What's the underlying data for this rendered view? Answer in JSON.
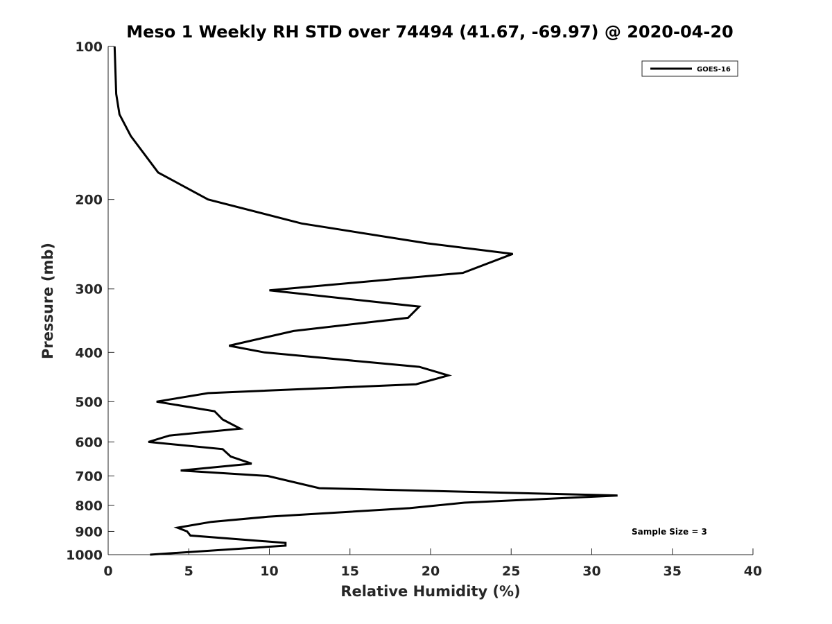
{
  "chart_data": {
    "type": "line",
    "title": "Meso 1 Weekly RH STD over 74494 (41.67, -69.97) @ 2020-04-20",
    "xlabel": "Relative Humidity (%)",
    "ylabel": "Pressure (mb)",
    "xlim": [
      0,
      40
    ],
    "ylim": [
      100,
      1000
    ],
    "yscale": "log",
    "y_reversed": true,
    "grid": false,
    "x_ticks": [
      0,
      5,
      10,
      15,
      20,
      25,
      30,
      35,
      40
    ],
    "x_tick_labels": [
      "0",
      "5",
      "10",
      "15",
      "20",
      "25",
      "30",
      "35",
      "40"
    ],
    "y_ticks": [
      100,
      200,
      300,
      400,
      500,
      600,
      700,
      800,
      900,
      1000
    ],
    "y_tick_labels": [
      "100",
      "200",
      "300",
      "400",
      "500",
      "600",
      "700",
      "800",
      "900",
      "1000"
    ],
    "legend": {
      "entries": [
        "GOES-16"
      ],
      "placement": "top-right"
    },
    "annotation": "Sample Size = 3",
    "series": [
      {
        "name": "GOES-16",
        "color": "#000000",
        "x": [
          0.4,
          0.5,
          0.7,
          1.4,
          3.1,
          6.2,
          12.0,
          19.8,
          25.1,
          22.0,
          10.0,
          19.3,
          18.6,
          11.5,
          7.5,
          9.7,
          19.3,
          21.1,
          19.1,
          6.2,
          3.0,
          6.6,
          7.1,
          8.2,
          3.8,
          2.5,
          7.1,
          7.6,
          8.9,
          4.5,
          9.9,
          13.1,
          31.6,
          22.1,
          18.7,
          9.9,
          6.4,
          4.3,
          4.9,
          5.1,
          11.0,
          11.0,
          2.6
        ],
        "y": [
          100,
          124,
          136,
          150,
          177,
          200,
          223,
          244,
          256,
          279,
          302,
          325,
          342,
          363,
          388,
          400,
          427,
          444,
          462,
          481,
          500,
          522,
          542,
          565,
          583,
          600,
          620,
          641,
          662,
          683,
          700,
          740,
          765,
          790,
          810,
          842,
          862,
          885,
          900,
          917,
          948,
          960,
          1000
        ]
      }
    ]
  }
}
